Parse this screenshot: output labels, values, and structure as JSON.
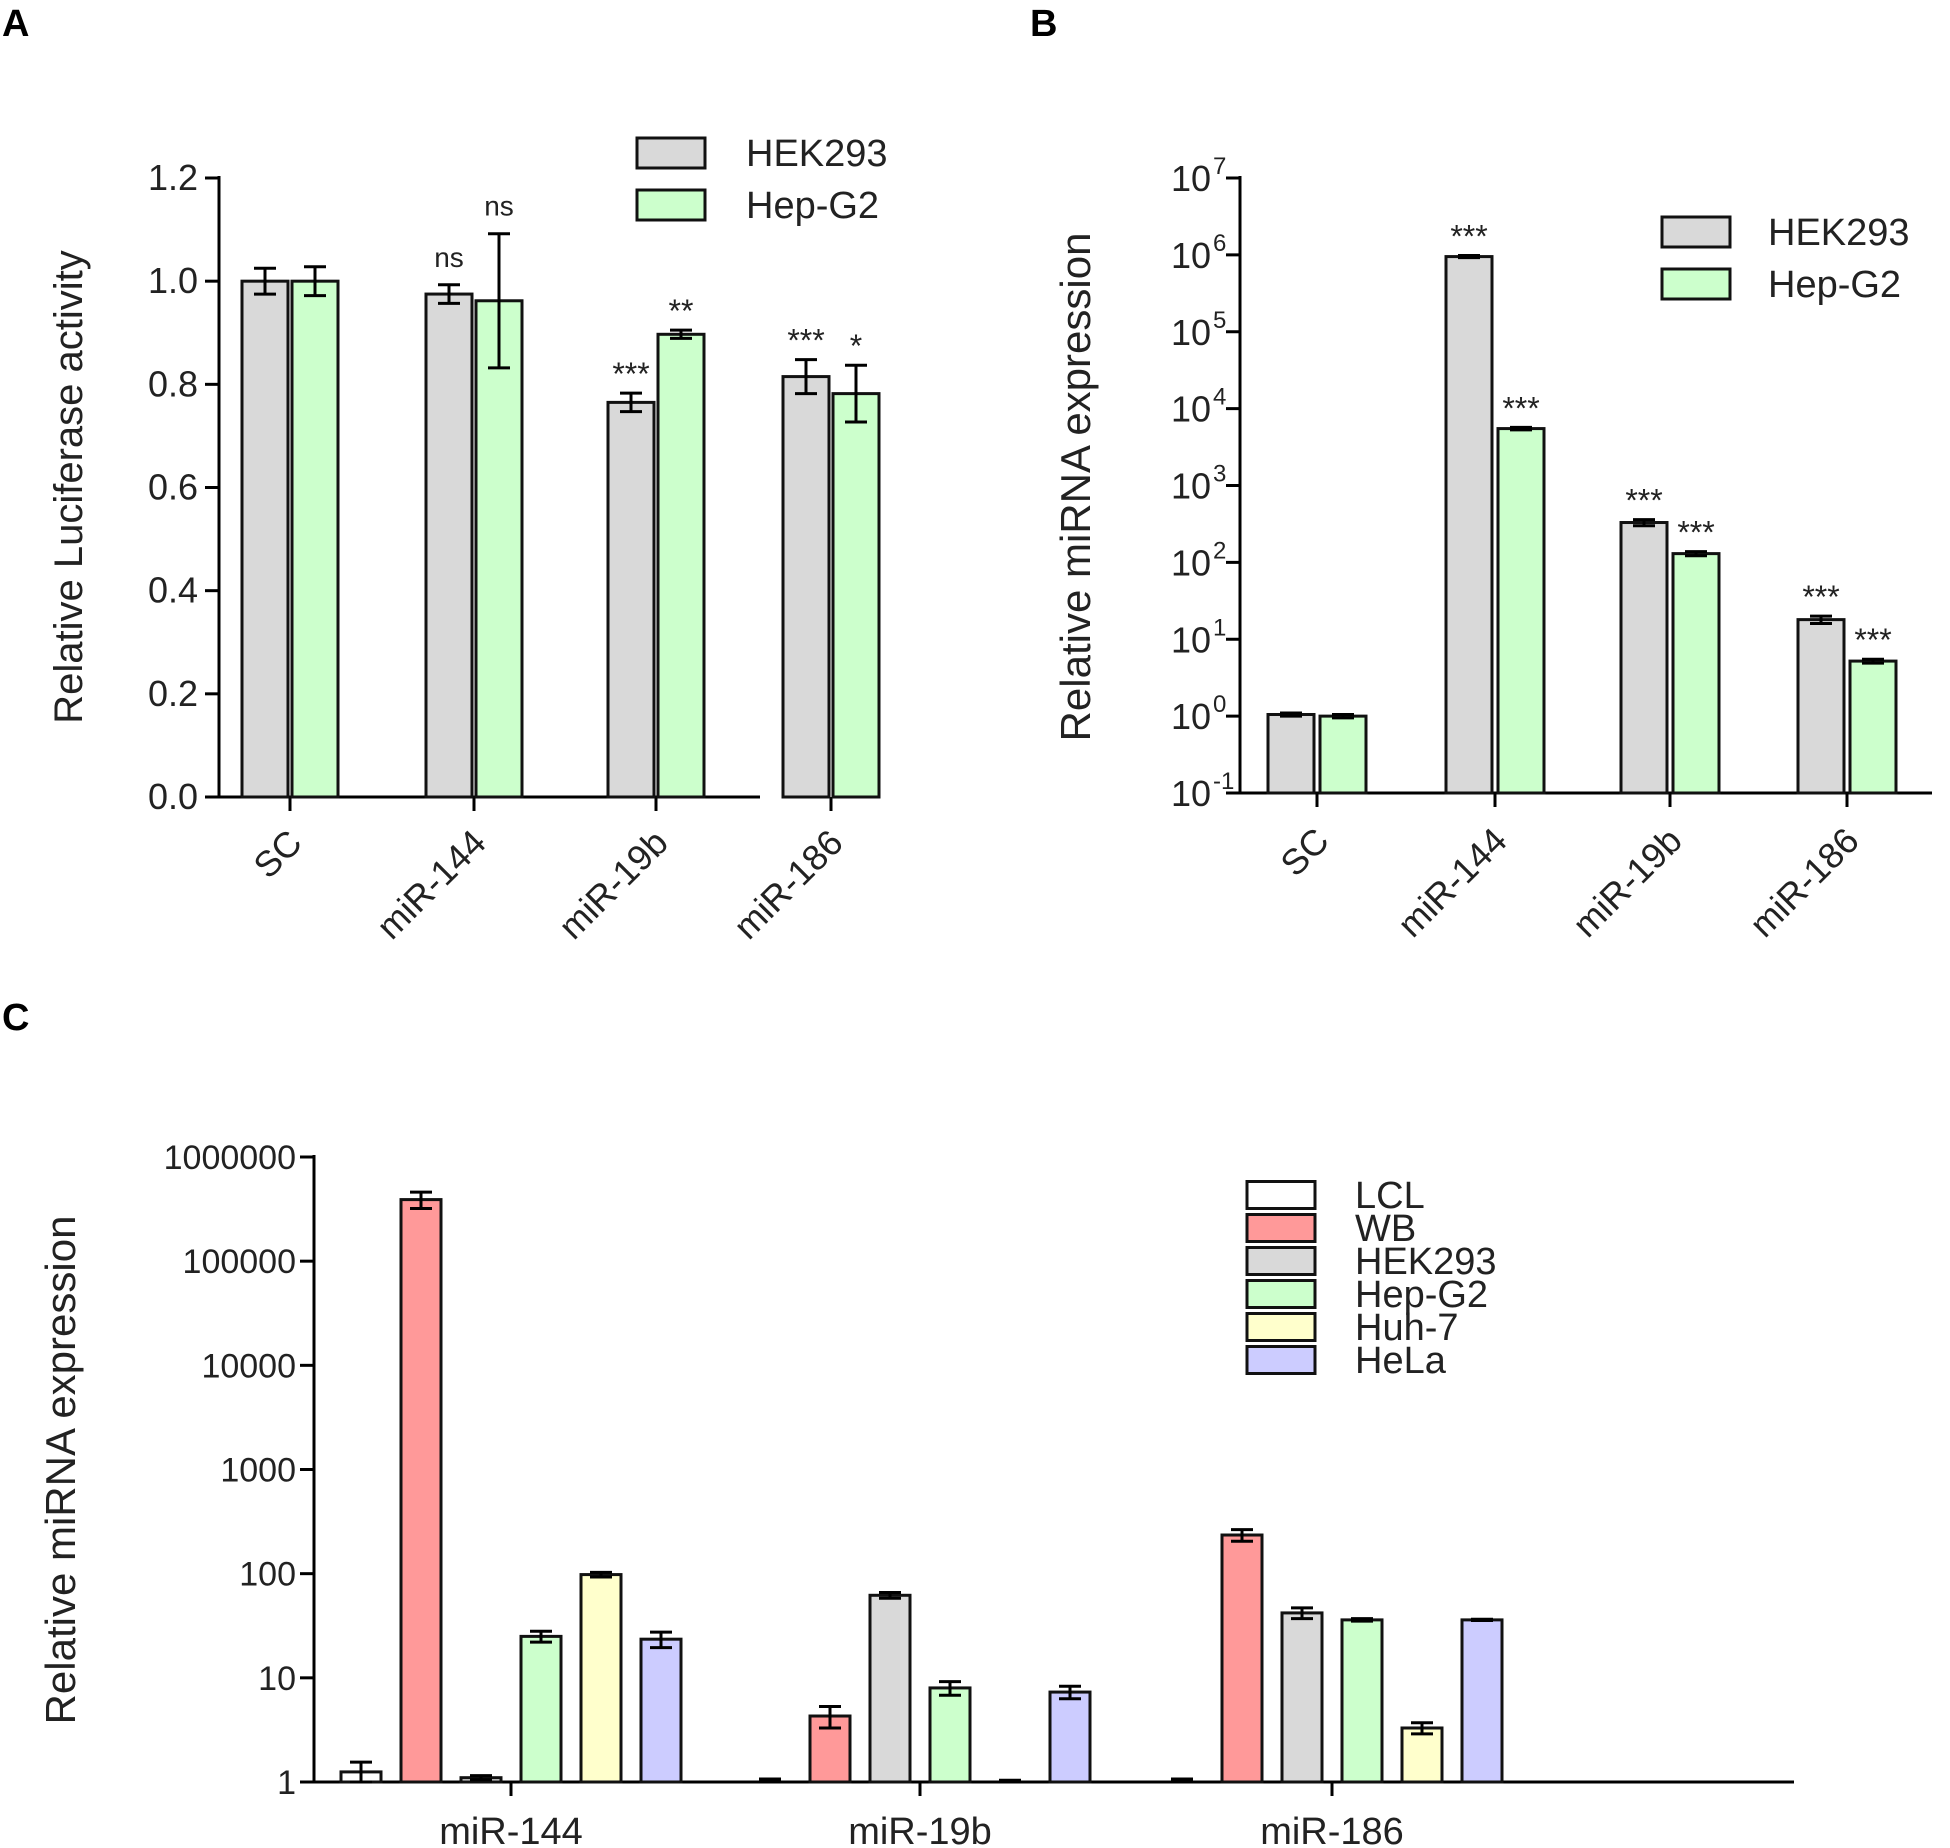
{
  "panels": {
    "A": "A",
    "B": "B",
    "C": "C"
  },
  "chart_data": [
    {
      "id": "A",
      "type": "bar",
      "ylabel": "Relative Luciferase activity",
      "categories": [
        "SC",
        "miR-144",
        "miR-19b",
        "miR-186"
      ],
      "ylim": [
        0,
        1.2
      ],
      "yticks": [
        "0.0",
        "0.2",
        "0.4",
        "0.6",
        "0.8",
        "1.0",
        "1.2"
      ],
      "ytick_values": [
        0,
        0.2,
        0.4,
        0.6,
        0.8,
        1.0,
        1.2
      ],
      "legend_position": "top-right",
      "series": [
        {
          "name": "HEK293",
          "color": "#d9d9d9",
          "values": [
            1.0,
            0.975,
            0.765,
            0.815
          ],
          "errors": [
            0.025,
            0.018,
            0.018,
            0.033
          ],
          "sig": [
            "",
            "ns",
            "***",
            "***"
          ]
        },
        {
          "name": "Hep-G2",
          "color": "#ccffcc",
          "values": [
            1.0,
            0.962,
            0.897,
            0.782
          ],
          "errors": [
            0.028,
            0.13,
            0.008,
            0.055
          ],
          "sig": [
            "",
            "ns",
            "**",
            "*"
          ]
        }
      ]
    },
    {
      "id": "B",
      "type": "bar",
      "scale": "log",
      "ylabel": "Relative miRNA expression",
      "categories": [
        "SC",
        "miR-144",
        "miR-19b",
        "miR-186"
      ],
      "ylim": [
        0.1,
        10000000
      ],
      "ytick_bases": [
        "10",
        "10",
        "10",
        "10",
        "10",
        "10",
        "10",
        "10",
        "10"
      ],
      "ytick_exps": [
        "-1",
        "0",
        "1",
        "2",
        "3",
        "4",
        "5",
        "6",
        "7"
      ],
      "ytick_values": [
        0.1,
        1,
        10,
        100,
        1000,
        10000,
        100000,
        1000000,
        10000000
      ],
      "legend_position": "top-right",
      "series": [
        {
          "name": "HEK293",
          "color": "#d9d9d9",
          "values": [
            1.05,
            950000,
            330,
            18
          ],
          "errors": [
            0.05,
            30000,
            30,
            2
          ],
          "sig": [
            "",
            "***",
            "***",
            "***"
          ]
        },
        {
          "name": "Hep-G2",
          "color": "#ccffcc",
          "values": [
            1.0,
            5500,
            130,
            5.2
          ],
          "errors": [
            0.05,
            200,
            8,
            0.3
          ],
          "sig": [
            "",
            "***",
            "***",
            "***"
          ]
        }
      ]
    },
    {
      "id": "C",
      "type": "bar",
      "scale": "log",
      "ylabel": "Relative miRNA expression",
      "categories": [
        "miR-144",
        "miR-19b",
        "miR-186"
      ],
      "ylim": [
        1,
        1000000
      ],
      "yticks": [
        "1",
        "10",
        "100",
        "1000",
        "10000",
        "100000",
        "1000000"
      ],
      "ytick_values": [
        1,
        10,
        100,
        1000,
        10000,
        100000,
        1000000
      ],
      "legend_position": "top-right",
      "series": [
        {
          "name": "LCL",
          "color": "#ffffff",
          "values": [
            1.25,
            1.0,
            1.0
          ],
          "errors": [
            0.3,
            0.07,
            0.07
          ]
        },
        {
          "name": "WB",
          "color": "#ff9999",
          "values": [
            390000,
            4.3,
            235
          ],
          "errors": [
            70000,
            1.0,
            30
          ]
        },
        {
          "name": "HEK293",
          "color": "#d9d9d9",
          "values": [
            1.1,
            62,
            42
          ],
          "errors": [
            0.05,
            4,
            5
          ]
        },
        {
          "name": "Hep-G2",
          "color": "#ccffcc",
          "values": [
            25,
            8,
            36
          ],
          "errors": [
            3,
            1.2,
            1
          ]
        },
        {
          "name": "Huh-7",
          "color": "#ffffcc",
          "values": [
            98,
            1.0,
            3.3
          ],
          "errors": [
            5,
            0.04,
            0.4
          ]
        },
        {
          "name": "HeLa",
          "color": "#ccccff",
          "values": [
            23.5,
            7.3,
            36
          ],
          "errors": [
            4,
            1.0,
            0.5
          ]
        }
      ]
    }
  ]
}
